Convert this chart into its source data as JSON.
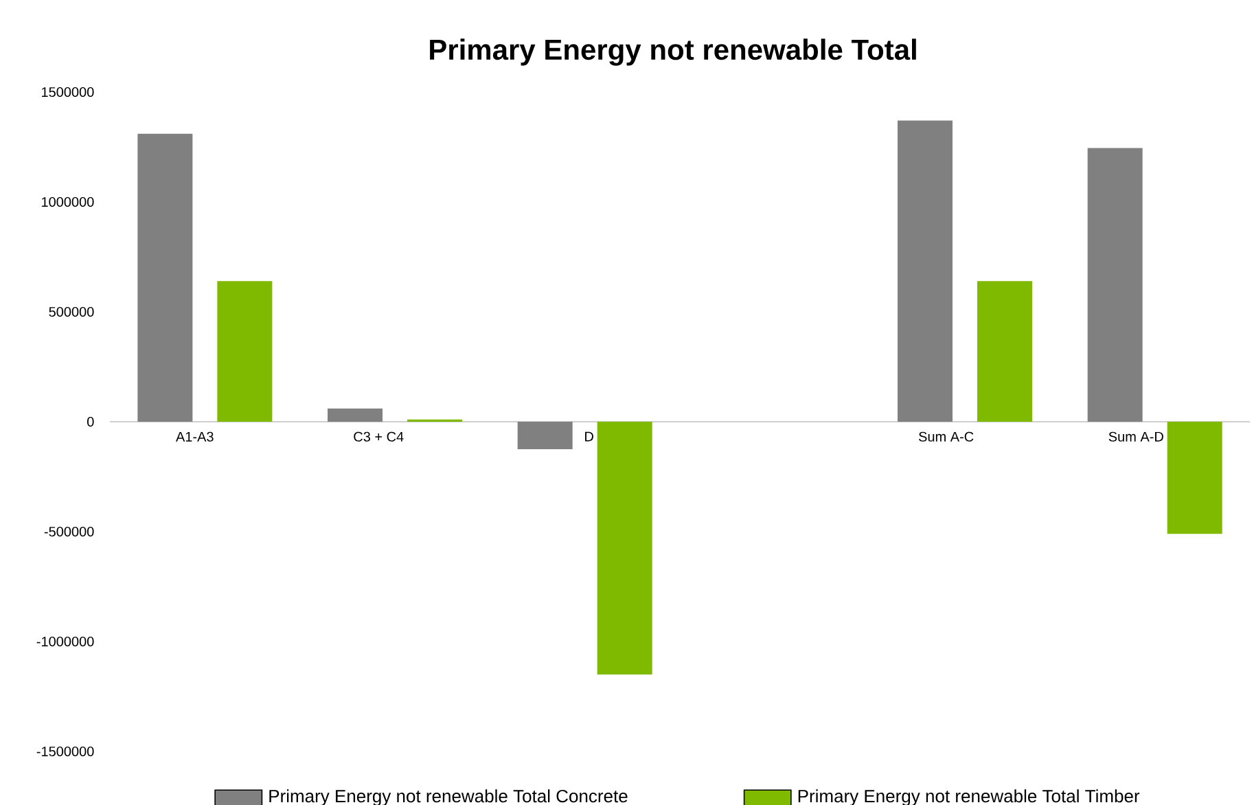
{
  "chart_data": {
    "type": "bar",
    "title": "Primary Energy not renewable Total",
    "categories": [
      "A1-A3",
      "C3 + C4",
      "D",
      null,
      "Sum A-C",
      "Sum A-D"
    ],
    "series": [
      {
        "name": "Primary Energy not renewable Total Concrete",
        "color": "#808080",
        "values": [
          1310000,
          60000,
          -125000,
          null,
          1370000,
          1245000
        ]
      },
      {
        "name": "Primary Energy not renewable Total Timber",
        "color": "#7fba00",
        "values": [
          640000,
          10000,
          -1150000,
          null,
          640000,
          -510000
        ]
      }
    ],
    "ylim": [
      -1500000,
      1500000
    ],
    "yticks": [
      -1500000,
      -1000000,
      -500000,
      0,
      500000,
      1000000,
      1500000
    ],
    "legend": "bottom"
  }
}
